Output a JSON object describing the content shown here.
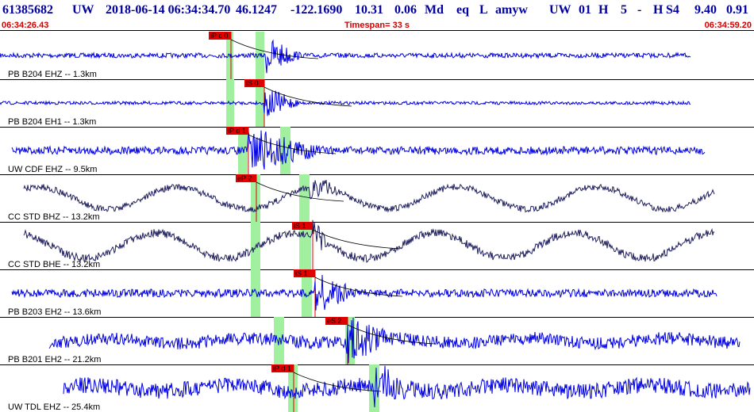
{
  "header": {
    "fields": [
      "61385682",
      "UW",
      "2018-06-14 06:34:34.70",
      "46.1247",
      "-122.1690",
      "10.31",
      "0.06",
      "Md",
      "eq",
      "L",
      "amyw",
      "UW",
      "01",
      "H",
      "5",
      "-",
      "H",
      "S4",
      "9.40",
      "0.91"
    ]
  },
  "timebar": {
    "start": "06:34:26.43",
    "timespan": "Timespan=  33 s",
    "end": "06:34:59.20"
  },
  "traces": [
    {
      "label": "PB B204 EHZ -- 1.3km",
      "pick": "iP c 0"
    },
    {
      "label": "PB B204 EH1 -- 1.3km",
      "pick": "iS 0"
    },
    {
      "label": "UW CDF EHZ -- 9.5km",
      "pick": "iP d 1"
    },
    {
      "label": "CC STD BHZ -- 13.2km",
      "pick": "eP 2"
    },
    {
      "label": "CC STD BHE -- 13.2km",
      "pick": "iS 1"
    },
    {
      "label": "PB B203 EH2 -- 13.6km",
      "pick": "iS 1"
    },
    {
      "label": "PB B201 EH2 -- 21.2km",
      "pick": "eS 2"
    },
    {
      "label": "UW TDL EHZ -- 25.4km",
      "pick": "iP d 1"
    }
  ]
}
